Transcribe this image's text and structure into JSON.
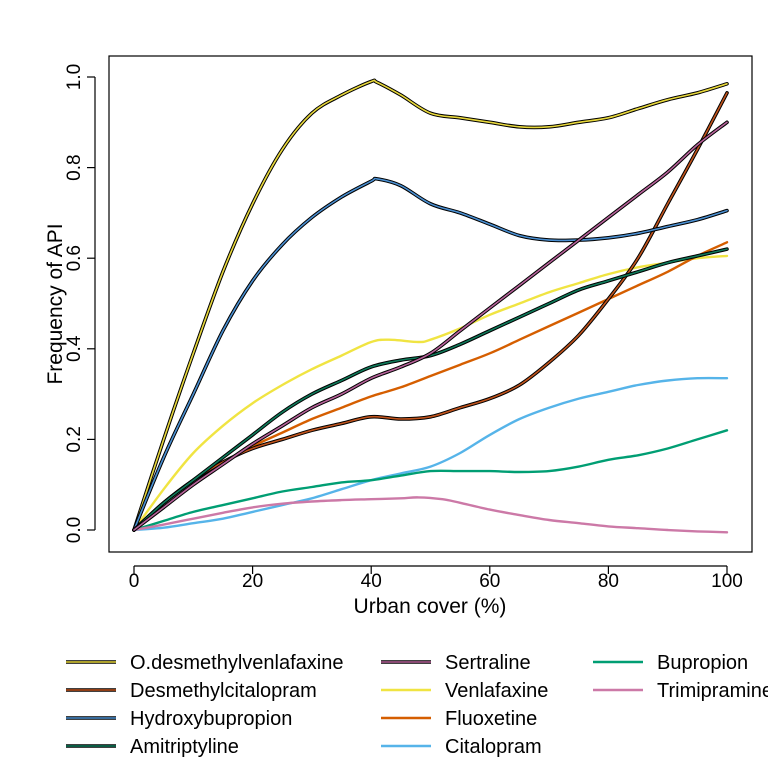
{
  "chart_data": {
    "type": "line",
    "title": "",
    "xlabel": "Urban cover (%)",
    "ylabel": "Frequency of API",
    "xlim": [
      0,
      100
    ],
    "ylim": [
      0,
      1
    ],
    "x_ticks": [
      "0",
      "20",
      "40",
      "60",
      "80",
      "100"
    ],
    "y_ticks": [
      "0.0",
      "0.2",
      "0.4",
      "0.6",
      "0.8",
      "1.0"
    ],
    "grid": false,
    "legend_position": "bottom",
    "legend_columns": 3,
    "series": [
      {
        "name": "O.desmethylvenlafaxine",
        "color": "#e8d83c",
        "outline": "#000000",
        "x": [
          0,
          5,
          10,
          15,
          20,
          25,
          30,
          35,
          40,
          41,
          45,
          50,
          55,
          60,
          65,
          70,
          75,
          80,
          85,
          90,
          95,
          100
        ],
        "y": [
          0.0,
          0.2,
          0.39,
          0.57,
          0.72,
          0.84,
          0.92,
          0.96,
          0.99,
          0.988,
          0.96,
          0.92,
          0.91,
          0.9,
          0.89,
          0.89,
          0.9,
          0.91,
          0.93,
          0.95,
          0.965,
          0.985
        ]
      },
      {
        "name": "Desmethylcitalopram",
        "color": "#c0531c",
        "outline": "#000000",
        "x": [
          0,
          5,
          10,
          15,
          20,
          25,
          30,
          35,
          40,
          45,
          50,
          55,
          60,
          65,
          70,
          75,
          80,
          85,
          90,
          95,
          100
        ],
        "y": [
          0.0,
          0.06,
          0.11,
          0.15,
          0.18,
          0.2,
          0.22,
          0.235,
          0.25,
          0.245,
          0.25,
          0.27,
          0.29,
          0.32,
          0.37,
          0.43,
          0.51,
          0.6,
          0.72,
          0.84,
          0.965
        ]
      },
      {
        "name": "Hydroxybupropion",
        "color": "#4a8fd1",
        "outline": "#000000",
        "x": [
          0,
          5,
          10,
          15,
          20,
          25,
          30,
          35,
          40,
          41,
          45,
          50,
          55,
          60,
          65,
          70,
          75,
          80,
          85,
          90,
          95,
          100
        ],
        "y": [
          0.0,
          0.16,
          0.3,
          0.44,
          0.55,
          0.63,
          0.69,
          0.735,
          0.77,
          0.775,
          0.76,
          0.72,
          0.7,
          0.675,
          0.65,
          0.64,
          0.64,
          0.645,
          0.655,
          0.67,
          0.685,
          0.705
        ]
      },
      {
        "name": "Amitriptyline",
        "color": "#0f7a5a",
        "outline": "#000000",
        "x": [
          0,
          5,
          10,
          15,
          20,
          25,
          30,
          35,
          40,
          45,
          50,
          55,
          60,
          65,
          70,
          75,
          80,
          85,
          90,
          95,
          100
        ],
        "y": [
          0.0,
          0.06,
          0.11,
          0.16,
          0.21,
          0.26,
          0.3,
          0.33,
          0.36,
          0.375,
          0.385,
          0.41,
          0.44,
          0.47,
          0.5,
          0.53,
          0.55,
          0.57,
          0.59,
          0.605,
          0.62
        ]
      },
      {
        "name": "Sertraline",
        "color": "#b7629a",
        "outline": "#000000",
        "x": [
          0,
          5,
          10,
          15,
          20,
          25,
          30,
          35,
          40,
          45,
          50,
          55,
          60,
          65,
          70,
          75,
          80,
          85,
          90,
          95,
          100
        ],
        "y": [
          0.0,
          0.05,
          0.1,
          0.145,
          0.19,
          0.23,
          0.27,
          0.3,
          0.335,
          0.36,
          0.39,
          0.44,
          0.49,
          0.54,
          0.59,
          0.64,
          0.69,
          0.74,
          0.79,
          0.85,
          0.9
        ]
      },
      {
        "name": "Venlafaxine",
        "color": "#f0e442",
        "x": [
          0,
          5,
          10,
          15,
          20,
          25,
          30,
          35,
          40,
          43,
          48,
          50,
          55,
          60,
          65,
          70,
          75,
          80,
          85,
          90,
          95,
          100
        ],
        "y": [
          0.0,
          0.09,
          0.17,
          0.23,
          0.28,
          0.32,
          0.355,
          0.385,
          0.415,
          0.42,
          0.415,
          0.42,
          0.445,
          0.475,
          0.5,
          0.525,
          0.545,
          0.565,
          0.58,
          0.59,
          0.6,
          0.605
        ]
      },
      {
        "name": "Fluoxetine",
        "color": "#d55e00",
        "x": [
          0,
          5,
          10,
          15,
          20,
          25,
          30,
          35,
          40,
          45,
          50,
          55,
          60,
          65,
          70,
          75,
          80,
          85,
          90,
          95,
          100
        ],
        "y": [
          0.0,
          0.06,
          0.11,
          0.15,
          0.185,
          0.215,
          0.245,
          0.27,
          0.295,
          0.315,
          0.34,
          0.365,
          0.39,
          0.42,
          0.45,
          0.48,
          0.51,
          0.54,
          0.57,
          0.605,
          0.635
        ]
      },
      {
        "name": "Citalopram",
        "color": "#56b4e9",
        "x": [
          0,
          5,
          10,
          15,
          20,
          25,
          30,
          35,
          40,
          45,
          50,
          55,
          60,
          65,
          70,
          75,
          80,
          85,
          90,
          95,
          100
        ],
        "y": [
          0.0,
          0.005,
          0.015,
          0.025,
          0.04,
          0.055,
          0.07,
          0.09,
          0.11,
          0.125,
          0.14,
          0.17,
          0.21,
          0.245,
          0.27,
          0.29,
          0.305,
          0.32,
          0.33,
          0.335,
          0.335
        ]
      },
      {
        "name": "Bupropion",
        "color": "#009e73",
        "x": [
          0,
          5,
          10,
          15,
          20,
          25,
          30,
          35,
          40,
          45,
          50,
          55,
          60,
          65,
          70,
          75,
          80,
          85,
          90,
          95,
          100
        ],
        "y": [
          0.0,
          0.02,
          0.04,
          0.055,
          0.07,
          0.085,
          0.095,
          0.105,
          0.11,
          0.12,
          0.13,
          0.13,
          0.13,
          0.128,
          0.13,
          0.14,
          0.155,
          0.165,
          0.18,
          0.2,
          0.22
        ]
      },
      {
        "name": "Trimipramine",
        "color": "#cc79a7",
        "x": [
          0,
          5,
          10,
          15,
          20,
          25,
          30,
          35,
          40,
          45,
          48,
          52,
          55,
          60,
          65,
          70,
          75,
          80,
          85,
          90,
          95,
          100
        ],
        "y": [
          0.0,
          0.012,
          0.025,
          0.038,
          0.05,
          0.058,
          0.063,
          0.066,
          0.068,
          0.07,
          0.072,
          0.068,
          0.06,
          0.045,
          0.033,
          0.022,
          0.015,
          0.008,
          0.004,
          0.0,
          -0.003,
          -0.005
        ]
      }
    ]
  }
}
